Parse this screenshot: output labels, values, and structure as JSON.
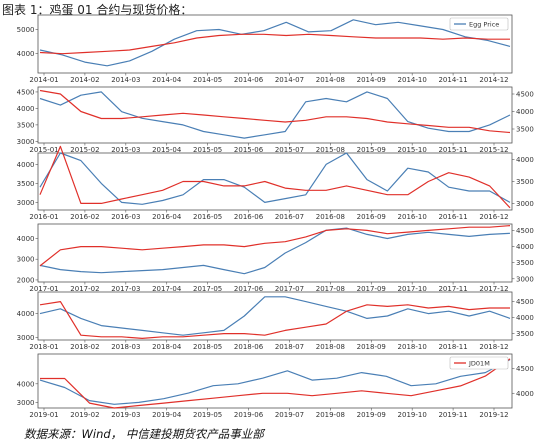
{
  "figure": {
    "title": "图表 1：鸡蛋 01 合约与现货价格：",
    "source": "数据来源：Wind， 中信建投期货农产品事业部"
  },
  "colors": {
    "spot": "#4a7fb5",
    "futures": "#e0302a",
    "axis": "#555555"
  },
  "chart_data": [
    {
      "type": "line",
      "year": 2014,
      "x_ticks": [
        "2014-01",
        "2014-02",
        "2014-03",
        "2014-04",
        "2014-05",
        "2014-06",
        "2014-07",
        "2014-08",
        "2014-09",
        "2014-10",
        "2014-11",
        "2014-12"
      ],
      "y_left_ticks": [
        4000,
        5000
      ],
      "y_left_range": [
        3200,
        5600
      ],
      "y_right_ticks": [],
      "y_right_range": [
        3200,
        5600
      ],
      "legend": [
        "Egg Price"
      ],
      "series": [
        {
          "name": "Egg Price",
          "axis": "left",
          "values": [
            4150,
            3950,
            3650,
            3500,
            3700,
            4100,
            4600,
            4950,
            5000,
            4800,
            4950,
            5300,
            4900,
            4950,
            5400,
            5200,
            5300,
            5150,
            5000,
            4700,
            4550,
            4300
          ]
        },
        {
          "axis": "left",
          "values": [
            4050,
            4000,
            4050,
            4100,
            4150,
            4300,
            4450,
            4650,
            4750,
            4800,
            4800,
            4750,
            4800,
            4750,
            4700,
            4650,
            4650,
            4650,
            4600,
            4650,
            4600,
            4600
          ]
        }
      ]
    },
    {
      "type": "line",
      "year": 2015,
      "x_ticks": [
        "2015-01",
        "2015-02",
        "2015-03",
        "2015-04",
        "2015-05",
        "2015-06",
        "2015-07",
        "2015-08",
        "2015-09",
        "2015-10",
        "2015-11",
        "2015-12"
      ],
      "y_left_ticks": [
        3000,
        3500,
        4000,
        4500
      ],
      "y_left_range": [
        2950,
        4650
      ],
      "y_right_ticks": [
        3500,
        4000,
        4500
      ],
      "y_right_range": [
        3100,
        4700
      ],
      "legend": [],
      "series": [
        {
          "axis": "left",
          "values": [
            4300,
            4100,
            4400,
            4500,
            3900,
            3700,
            3600,
            3500,
            3300,
            3200,
            3100,
            3200,
            3300,
            4200,
            4300,
            4200,
            4500,
            4300,
            3600,
            3400,
            3300,
            3300,
            3500,
            3800
          ]
        },
        {
          "axis": "right",
          "values": [
            4600,
            4500,
            4000,
            3800,
            3800,
            3850,
            3900,
            3950,
            3900,
            3850,
            3800,
            3750,
            3700,
            3750,
            3850,
            3850,
            3800,
            3700,
            3650,
            3600,
            3550,
            3550,
            3450,
            3400
          ]
        }
      ]
    },
    {
      "type": "line",
      "year": 2016,
      "x_ticks": [
        "2016-01",
        "2016-02",
        "2016-03",
        "2016-04",
        "2016-05",
        "2016-06",
        "2016-07",
        "2016-08",
        "2016-09",
        "2016-10",
        "2016-11",
        "2016-12"
      ],
      "y_left_ticks": [
        3000,
        3500,
        4000
      ],
      "y_left_range": [
        2800,
        4300
      ],
      "y_right_ticks": [
        3000,
        3500,
        4000
      ],
      "y_right_range": [
        2850,
        4150
      ],
      "legend": [],
      "series": [
        {
          "axis": "left",
          "values": [
            3400,
            4300,
            4100,
            3500,
            3000,
            2950,
            3050,
            3200,
            3600,
            3600,
            3400,
            3000,
            3100,
            3200,
            4000,
            4300,
            3600,
            3300,
            3900,
            3800,
            3400,
            3300,
            3300,
            3000
          ]
        },
        {
          "axis": "right",
          "values": [
            3200,
            4300,
            3000,
            3000,
            3100,
            3200,
            3300,
            3500,
            3500,
            3400,
            3400,
            3500,
            3350,
            3300,
            3300,
            3400,
            3300,
            3200,
            3200,
            3500,
            3700,
            3600,
            3400,
            2900
          ]
        }
      ]
    },
    {
      "type": "line",
      "year": 2017,
      "x_ticks": [
        "2017-01",
        "2017-02",
        "2017-03",
        "2017-04",
        "2017-05",
        "2017-06",
        "2017-07",
        "2017-08",
        "2017-09",
        "2017-10",
        "2017-11",
        "2017-12"
      ],
      "y_left_ticks": [
        2000,
        3000,
        4000
      ],
      "y_left_range": [
        1900,
        4700
      ],
      "y_right_ticks": [
        3000,
        3500,
        4000,
        4500
      ],
      "y_right_range": [
        2900,
        4700
      ],
      "legend": [],
      "series": [
        {
          "axis": "left",
          "values": [
            2700,
            2500,
            2400,
            2350,
            2400,
            2450,
            2500,
            2600,
            2700,
            2500,
            2300,
            2600,
            3300,
            3800,
            4400,
            4500,
            4200,
            4000,
            4200,
            4300,
            4200,
            4100,
            4200,
            4250
          ]
        },
        {
          "axis": "right",
          "values": [
            3400,
            3900,
            4000,
            4000,
            3950,
            3900,
            3950,
            4000,
            4050,
            4050,
            4000,
            4100,
            4150,
            4300,
            4500,
            4550,
            4500,
            4400,
            4450,
            4500,
            4550,
            4600,
            4600,
            4650
          ]
        }
      ]
    },
    {
      "type": "line",
      "year": 2018,
      "x_ticks": [
        "2018-01",
        "2018-02",
        "2018-03",
        "2018-04",
        "2018-05",
        "2018-06",
        "2018-07",
        "2018-08",
        "2018-09",
        "2018-10",
        "2018-11",
        "2018-12"
      ],
      "y_left_ticks": [
        3000,
        4000
      ],
      "y_left_range": [
        2900,
        4900
      ],
      "y_right_ticks": [
        3500,
        4000,
        4500
      ],
      "y_right_range": [
        3300,
        4800
      ],
      "legend": [],
      "series": [
        {
          "axis": "left",
          "values": [
            4000,
            4200,
            3800,
            3500,
            3400,
            3300,
            3200,
            3100,
            3200,
            3300,
            3900,
            4700,
            4700,
            4500,
            4300,
            4100,
            3800,
            3900,
            4200,
            4000,
            4100,
            3900,
            4100,
            3800
          ]
        },
        {
          "axis": "right",
          "values": [
            4400,
            4500,
            3450,
            3400,
            3400,
            3350,
            3400,
            3400,
            3450,
            3500,
            3500,
            3450,
            3600,
            3700,
            3800,
            4200,
            4400,
            4350,
            4400,
            4300,
            4350,
            4250,
            4300,
            4300
          ]
        }
      ]
    },
    {
      "type": "line",
      "year": 2019,
      "x_ticks": [
        "2019-01",
        "2019-02",
        "2019-03",
        "2019-04",
        "2019-05",
        "2019-06",
        "2019-07",
        "2019-08",
        "2019-09",
        "2019-10",
        "2019-11",
        "2019-12"
      ],
      "y_left_ticks": [
        3000,
        4000
      ],
      "y_left_range": [
        2700,
        5600
      ],
      "y_right_ticks": [
        4000,
        4500
      ],
      "y_right_range": [
        3700,
        4800
      ],
      "legend": [
        "JD01M"
      ],
      "series": [
        {
          "axis": "left",
          "values": [
            4200,
            3800,
            3100,
            2900,
            3000,
            3200,
            3500,
            3900,
            4000,
            4300,
            4700,
            4200,
            4300,
            4600,
            4400,
            3900,
            4000,
            4400,
            4600,
            5300
          ]
        },
        {
          "name": "JD01M",
          "axis": "right",
          "values": [
            4300,
            4300,
            3800,
            3700,
            3750,
            3800,
            3850,
            3900,
            3950,
            4000,
            4000,
            3950,
            4000,
            4050,
            4000,
            3950,
            4050,
            4150,
            4350,
            4700
          ]
        }
      ]
    }
  ]
}
